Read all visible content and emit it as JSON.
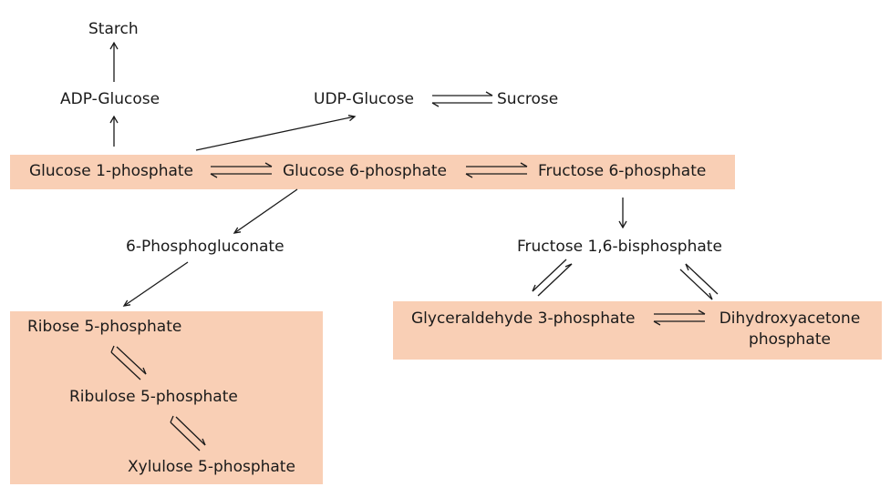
{
  "colors": {
    "box_fill": "#f9cfb5",
    "text": "#1a1a1a"
  },
  "nodes": {
    "starch": "Starch",
    "adp_glucose": "ADP-Glucose",
    "udp_glucose": "UDP-Glucose",
    "sucrose": "Sucrose",
    "glucose_1_phosphate": "Glucose 1-phosphate",
    "glucose_6_phosphate": "Glucose 6-phosphate",
    "fructose_6_phosphate": "Fructose 6-phosphate",
    "phosphogluconate_6": "6-Phosphogluconate",
    "fructose_1_6_bisphosphate": "Fructose 1,6-bisphosphate",
    "ribose_5_phosphate": "Ribose 5-phosphate",
    "ribulose_5_phosphate": "Ribulose 5-phosphate",
    "xylulose_5_phosphate": "Xylulose 5-phosphate",
    "glyceraldehyde_3_phosphate": "Glyceraldehyde 3-phosphate",
    "dihydroxyacetone_line1": "Dihydroxyacetone",
    "dihydroxyacetone_line2": "phosphate"
  },
  "reactions": [
    {
      "from": "ADP-Glucose",
      "to": "Starch",
      "type": "forward"
    },
    {
      "from": "Glucose 1-phosphate",
      "to": "ADP-Glucose",
      "type": "forward"
    },
    {
      "from": "Glucose 1-phosphate",
      "to": "UDP-Glucose",
      "type": "forward"
    },
    {
      "from": "UDP-Glucose",
      "to": "Sucrose",
      "type": "reversible"
    },
    {
      "from": "Glucose 1-phosphate",
      "to": "Glucose 6-phosphate",
      "type": "reversible"
    },
    {
      "from": "Glucose 6-phosphate",
      "to": "Fructose 6-phosphate",
      "type": "reversible"
    },
    {
      "from": "Glucose 6-phosphate",
      "to": "6-Phosphogluconate",
      "type": "forward"
    },
    {
      "from": "6-Phosphogluconate",
      "to": "Ribose 5-phosphate",
      "type": "forward"
    },
    {
      "from": "Fructose 6-phosphate",
      "to": "Fructose 1,6-bisphosphate",
      "type": "forward"
    },
    {
      "from": "Fructose 1,6-bisphosphate",
      "to": "Glyceraldehyde 3-phosphate",
      "type": "reversible"
    },
    {
      "from": "Fructose 1,6-bisphosphate",
      "to": "Dihydroxyacetone phosphate",
      "type": "reversible"
    },
    {
      "from": "Glyceraldehyde 3-phosphate",
      "to": "Dihydroxyacetone phosphate",
      "type": "reversible"
    },
    {
      "from": "Ribose 5-phosphate",
      "to": "Ribulose 5-phosphate",
      "type": "reversible"
    },
    {
      "from": "Ribulose 5-phosphate",
      "to": "Xylulose 5-phosphate",
      "type": "reversible"
    }
  ]
}
